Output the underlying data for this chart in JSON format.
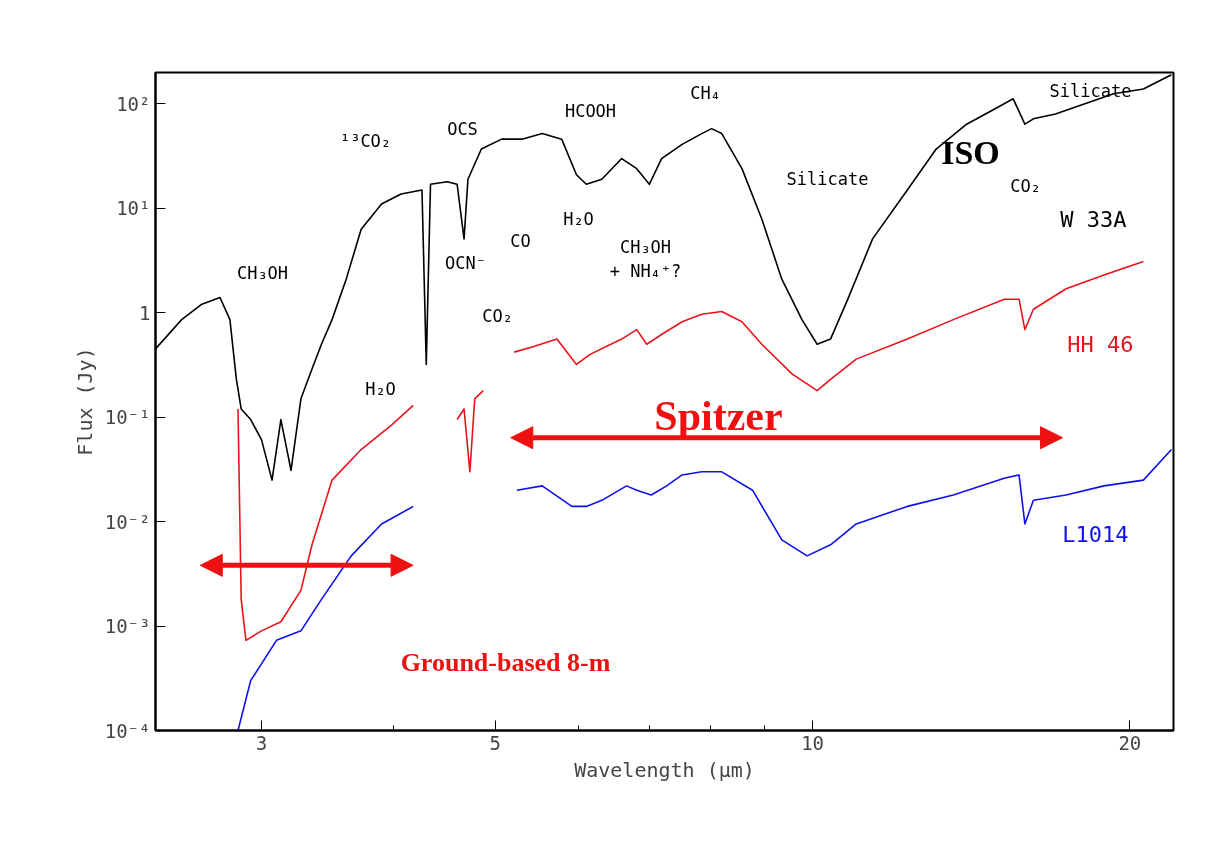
{
  "chart_data": {
    "type": "line",
    "xlabel": "Wavelength (μm)",
    "ylabel": "Flux (Jy)",
    "log": "xy",
    "xlim": [
      2.38,
      22
    ],
    "ylim": [
      0.0001,
      200
    ],
    "xticks": [
      3,
      5,
      10,
      20,
      {
        "value": 4,
        "label": null
      },
      {
        "value": 6,
        "label": null
      },
      {
        "value": 7,
        "label": null
      },
      {
        "value": 8,
        "label": null
      },
      {
        "value": 9,
        "label": null
      }
    ],
    "yticks": [
      {
        "value": 0.0001,
        "label": "10⁻⁴"
      },
      {
        "value": 0.001,
        "label": "10⁻³"
      },
      {
        "value": 0.01,
        "label": "10⁻²"
      },
      {
        "value": 0.1,
        "label": "10⁻¹"
      },
      1,
      {
        "value": 10,
        "label": "10¹"
      },
      {
        "value": 100,
        "label": "10²"
      }
    ],
    "grid": false,
    "line_style": "solid",
    "marker": "none",
    "series": [
      {
        "name": "W 33A",
        "color": "#000000",
        "x": [
          2.38,
          2.52,
          2.63,
          2.74,
          2.8,
          2.84,
          2.87,
          2.93,
          3.0,
          3.07,
          3.13,
          3.2,
          3.27,
          3.35,
          3.42,
          3.5,
          3.61,
          3.73,
          3.9,
          4.07,
          4.26,
          4.3,
          4.34,
          4.5,
          4.6,
          4.67,
          4.71,
          4.85,
          5.07,
          5.3,
          5.54,
          5.78,
          5.97,
          6.1,
          6.31,
          6.59,
          6.81,
          7.0,
          7.19,
          7.52,
          7.85,
          8.02,
          8.2,
          8.57,
          8.95,
          9.35,
          9.77,
          10.1,
          10.4,
          10.8,
          11.4,
          12.3,
          13.1,
          14.0,
          14.9,
          15.5,
          15.9,
          16.2,
          17.0,
          18.1,
          19.3,
          20.6,
          21.9
        ],
        "values": [
          0.45,
          0.86,
          1.2,
          1.4,
          0.86,
          0.23,
          0.12,
          0.095,
          0.061,
          0.025,
          0.095,
          0.031,
          0.15,
          0.29,
          0.5,
          0.86,
          2.1,
          6.3,
          11,
          13.7,
          15,
          0.32,
          17,
          18,
          17,
          5.1,
          19,
          37,
          46,
          46,
          52,
          46,
          21,
          17,
          19,
          30,
          24,
          17,
          30,
          41,
          52,
          58,
          52,
          24,
          7.9,
          2.1,
          0.86,
          0.5,
          0.56,
          1.35,
          5.1,
          15,
          37,
          64,
          90,
          112,
          64,
          72,
          80,
          100,
          125,
          139,
          190
        ]
      },
      {
        "name": "HH 46",
        "color": "#e8141c",
        "x": [
          2.85,
          2.87,
          2.9,
          3.0,
          3.13,
          3.27,
          3.35,
          3.5,
          3.73,
          3.99,
          4.18,
          4.4,
          4.6,
          4.67,
          4.73,
          4.78,
          4.87,
          5.05,
          5.21,
          5.42,
          5.72,
          5.97,
          6.15,
          6.59,
          6.81,
          6.96,
          7.19,
          7.52,
          7.85,
          8.2,
          8.57,
          8.95,
          9.56,
          10.1,
          10.4,
          11.0,
          12.3,
          13.6,
          15.2,
          15.7,
          15.9,
          16.2,
          17.4,
          18.9,
          20.6
        ],
        "values": [
          0.12,
          0.0018,
          0.00073,
          0.0009,
          0.0011,
          0.0022,
          0.006,
          0.025,
          0.049,
          0.085,
          0.13,
          null,
          0.095,
          0.12,
          0.03,
          0.15,
          0.18,
          null,
          0.42,
          0.47,
          0.56,
          0.32,
          0.4,
          0.56,
          0.69,
          0.5,
          0.62,
          0.82,
          0.97,
          1.03,
          0.82,
          0.5,
          0.26,
          0.18,
          0.23,
          0.36,
          0.56,
          0.86,
          1.35,
          1.35,
          0.69,
          1.08,
          1.7,
          2.3,
          3.1
        ]
      },
      {
        "name": "L1014",
        "color": "#1010ee",
        "x": [
          2.85,
          2.93,
          3.1,
          3.27,
          3.42,
          3.65,
          3.9,
          4.18,
          4.7,
          5.24,
          5.54,
          5.91,
          6.1,
          6.31,
          6.66,
          6.81,
          7.03,
          7.27,
          7.52,
          7.85,
          8.2,
          8.77,
          9.35,
          9.88,
          10.4,
          11.0,
          12.3,
          13.6,
          15.2,
          15.7,
          15.9,
          16.2,
          17.4,
          18.9,
          20.6,
          21.9
        ],
        "values": [
          0.0001,
          0.0003,
          0.00073,
          0.0009,
          0.0018,
          0.0047,
          0.0095,
          0.014,
          null,
          0.02,
          0.022,
          0.014,
          0.014,
          0.016,
          0.022,
          0.02,
          0.018,
          0.022,
          0.028,
          0.03,
          0.03,
          0.02,
          0.0067,
          0.0047,
          0.006,
          0.0095,
          0.014,
          0.018,
          0.026,
          0.028,
          0.0095,
          0.016,
          0.018,
          0.022,
          0.025,
          0.049
        ]
      }
    ],
    "annotations": [
      "¹³CO₂",
      "OCS",
      "HCOOH",
      "CH₄",
      "Silicate",
      "ISO",
      "CO₂",
      "Silicate",
      "CO",
      "OCN⁻",
      "H₂O",
      "CH₃OH\n+ NH₄⁺?",
      "CO₂",
      "CH₃OH",
      "H₂O",
      "Spitzer",
      "Ground-based 8-m"
    ]
  }
}
